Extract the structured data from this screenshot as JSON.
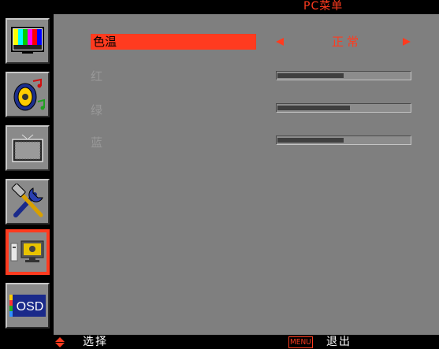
{
  "header": {
    "title": "PC菜单"
  },
  "sidebar": {
    "items": [
      {
        "name": "picture",
        "icon": "color-bars-icon"
      },
      {
        "name": "audio",
        "icon": "speaker-music-icon"
      },
      {
        "name": "screen",
        "icon": "tv-screen-icon"
      },
      {
        "name": "settings",
        "icon": "tools-icon"
      },
      {
        "name": "pc",
        "icon": "pc-monitor-icon",
        "active": true
      },
      {
        "name": "osd",
        "icon": "osd-icon",
        "label": "OSD"
      }
    ]
  },
  "menu": {
    "color_temp": {
      "label": "色温",
      "value": "正常"
    },
    "red": {
      "label": "红",
      "level": 0.5
    },
    "green": {
      "label": "绿",
      "level": 0.55
    },
    "blue": {
      "label": "蓝",
      "level": 0.5
    }
  },
  "footer": {
    "select_label": "选择",
    "menu_key": "MENU",
    "exit_label": "退出"
  },
  "colors": {
    "accent": "#ff3b1f",
    "background": "#7f7f7f",
    "inactive_text": "#999999"
  }
}
